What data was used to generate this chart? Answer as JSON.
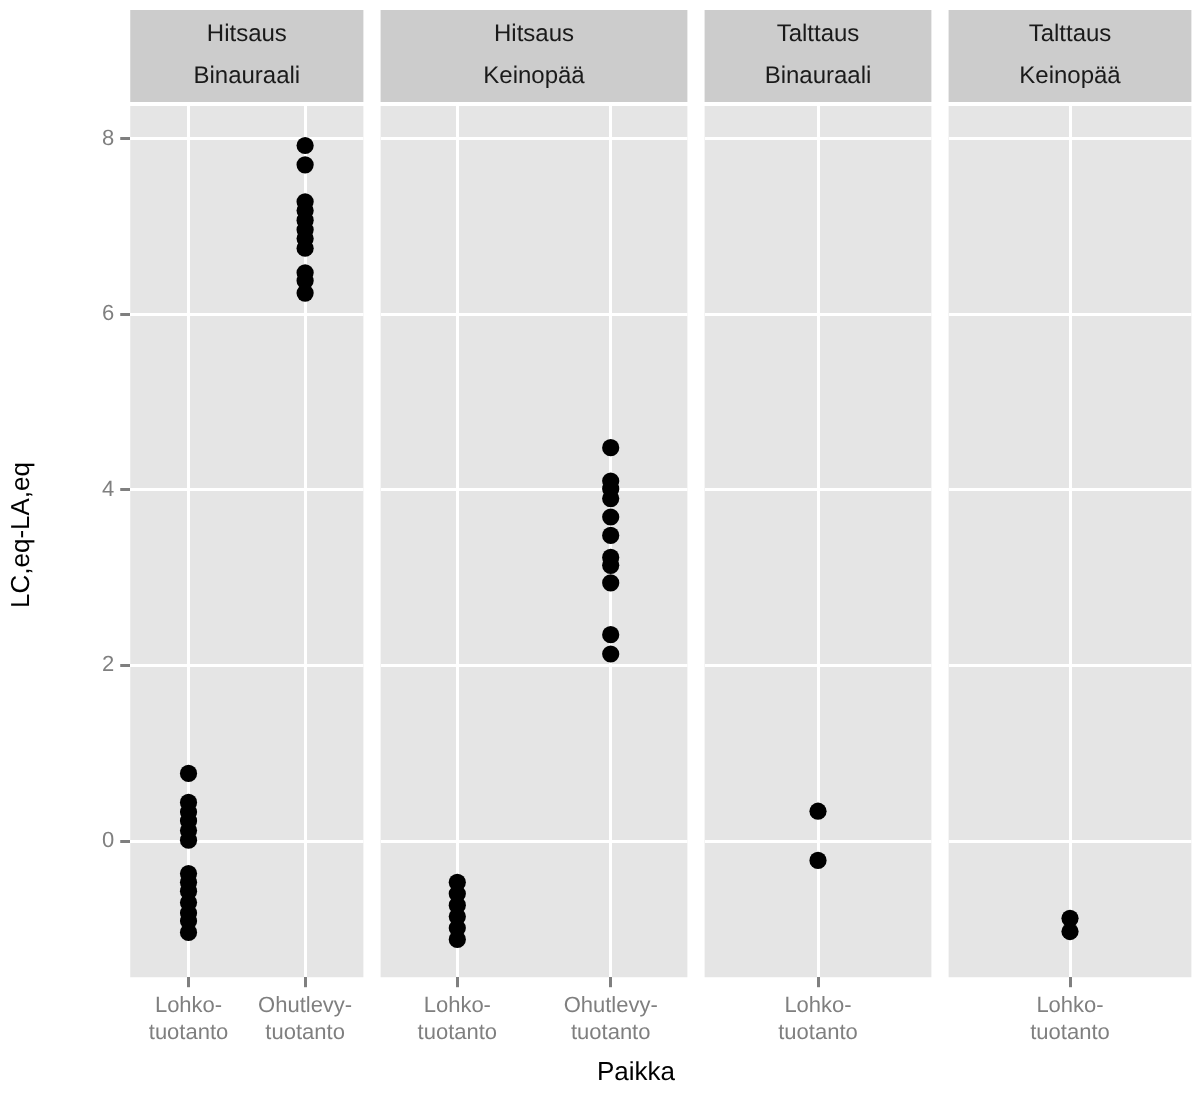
{
  "chart_data": [
    {
      "type": "scatter",
      "title": "Hitsaus",
      "subtitle": "Binauraali",
      "ylabel": "LC,eq-LA,eq",
      "categories": [
        "Lohko-tuotanto",
        "Ohutlevy-tuotanto"
      ],
      "ylim": [
        -1.55,
        8.37
      ],
      "yticks": [
        0,
        2,
        4,
        6,
        8
      ],
      "grid": true,
      "legend": false,
      "marker": "circle",
      "series": [
        {
          "color": "#000000",
          "x": [
            "Lohko-tuotanto",
            "Lohko-tuotanto",
            "Lohko-tuotanto",
            "Lohko-tuotanto",
            "Lohko-tuotanto",
            "Lohko-tuotanto",
            "Lohko-tuotanto",
            "Lohko-tuotanto",
            "Lohko-tuotanto",
            "Lohko-tuotanto",
            "Lohko-tuotanto",
            "Lohko-tuotanto",
            "Lohko-tuotanto",
            "Ohutlevy-tuotanto",
            "Ohutlevy-tuotanto",
            "Ohutlevy-tuotanto",
            "Ohutlevy-tuotanto",
            "Ohutlevy-tuotanto",
            "Ohutlevy-tuotanto",
            "Ohutlevy-tuotanto",
            "Ohutlevy-tuotanto",
            "Ohutlevy-tuotanto",
            "Ohutlevy-tuotanto",
            "Ohutlevy-tuotanto"
          ],
          "values": [
            0.77,
            0.44,
            0.33,
            0.23,
            0.12,
            0.01,
            -0.37,
            -0.47,
            -0.57,
            -0.7,
            -0.82,
            -0.91,
            -1.04,
            7.92,
            7.7,
            7.28,
            7.18,
            7.07,
            6.96,
            6.86,
            6.75,
            6.47,
            6.38,
            6.24
          ]
        }
      ]
    },
    {
      "type": "scatter",
      "title": "Hitsaus",
      "subtitle": "Keinopää",
      "xlabel": "Paikka",
      "categories": [
        "Lohko-tuotanto",
        "Ohutlevy-tuotanto"
      ],
      "ylim": [
        -1.55,
        8.37
      ],
      "yticks": [
        0,
        2,
        4,
        6,
        8
      ],
      "tick_labels": "x",
      "grid": true,
      "legend": false,
      "marker": "circle",
      "series": [
        {
          "color": "#000000",
          "x": [
            "Lohko-tuotanto",
            "Lohko-tuotanto",
            "Lohko-tuotanto",
            "Lohko-tuotanto",
            "Lohko-tuotanto",
            "Lohko-tuotanto",
            "Ohutlevy-tuotanto",
            "Ohutlevy-tuotanto",
            "Ohutlevy-tuotanto",
            "Ohutlevy-tuotanto",
            "Ohutlevy-tuotanto",
            "Ohutlevy-tuotanto",
            "Ohutlevy-tuotanto",
            "Ohutlevy-tuotanto",
            "Ohutlevy-tuotanto",
            "Ohutlevy-tuotanto",
            "Ohutlevy-tuotanto"
          ],
          "values": [
            -0.47,
            -0.6,
            -0.73,
            -0.86,
            -0.99,
            -1.12,
            4.48,
            4.1,
            4.01,
            3.9,
            3.69,
            3.48,
            3.23,
            3.14,
            2.94,
            2.35,
            2.13
          ]
        }
      ]
    },
    {
      "type": "scatter",
      "title": "Talttaus",
      "subtitle": "Binauraali",
      "categories": [
        "Lohko-tuotanto"
      ],
      "ylim": [
        -1.55,
        8.37
      ],
      "yticks": [
        0,
        2,
        4,
        6,
        8
      ],
      "tick_labels": "x",
      "grid": true,
      "legend": false,
      "marker": "circle",
      "series": [
        {
          "color": "#000000",
          "x": [
            "Lohko-tuotanto",
            "Lohko-tuotanto"
          ],
          "values": [
            0.34,
            -0.22
          ]
        }
      ]
    },
    {
      "type": "scatter",
      "title": "Talttaus",
      "subtitle": "Keinopää",
      "categories": [
        "Lohko-tuotanto"
      ],
      "ylim": [
        -1.55,
        8.37
      ],
      "yticks": [
        0,
        2,
        4,
        6,
        8
      ],
      "tick_labels": "x",
      "grid": true,
      "legend": false,
      "marker": "circle",
      "series": [
        {
          "color": "#000000",
          "x": [
            "Lohko-tuotanto",
            "Lohko-tuotanto"
          ],
          "values": [
            -0.88,
            -1.03
          ]
        }
      ]
    }
  ]
}
